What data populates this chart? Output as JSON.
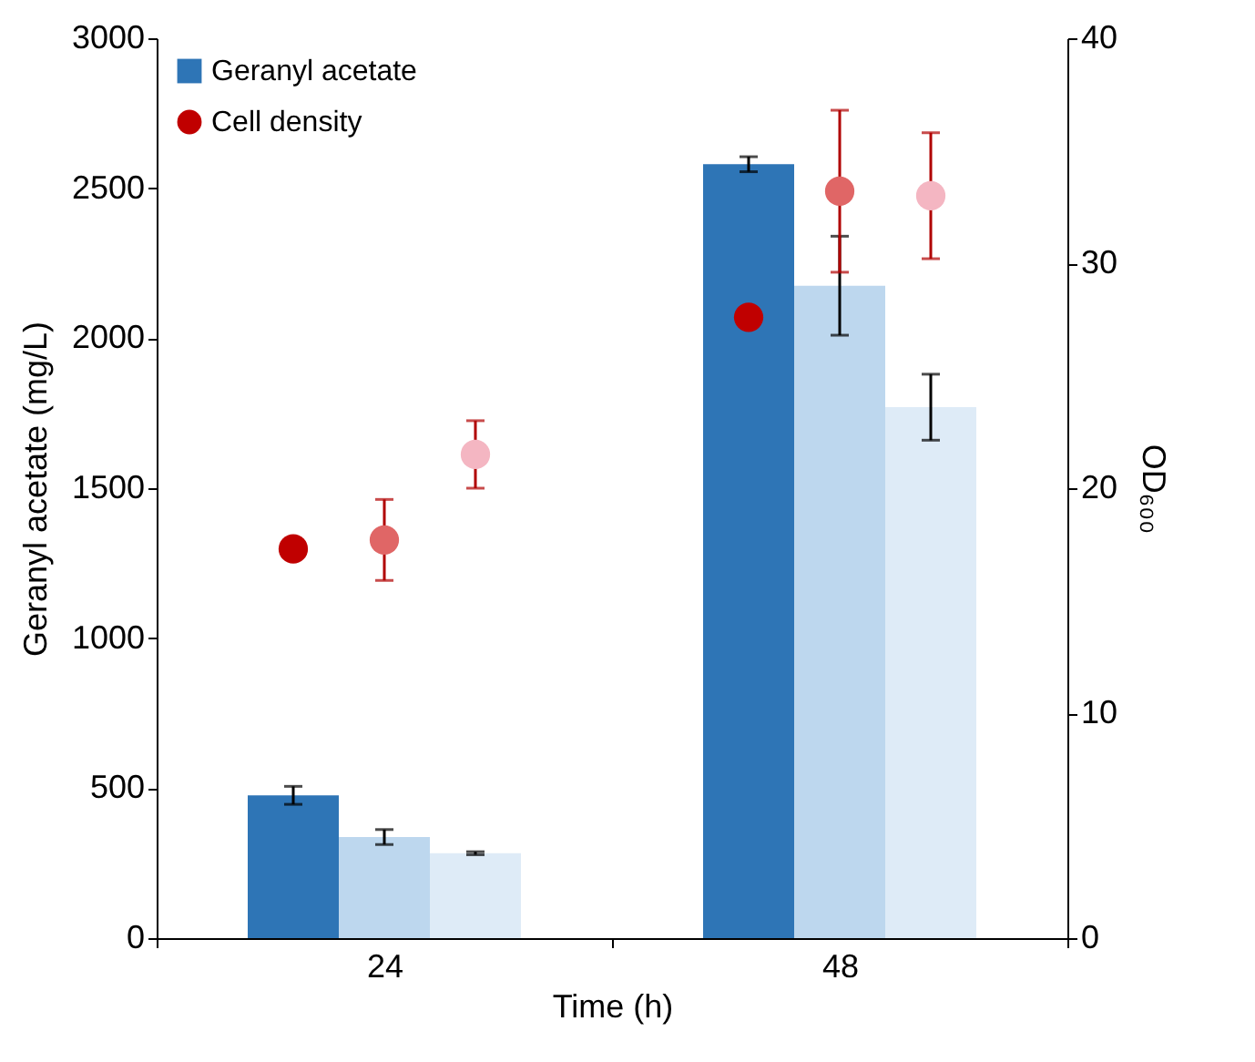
{
  "chart_data": {
    "type": "bar",
    "xlabel": "Time (h)",
    "ylabel": "Geranyl acetate (mg/L)",
    "y2label": "OD₆₀₀",
    "categories": [
      "24",
      "48"
    ],
    "ylim": [
      0,
      3000
    ],
    "yticks": [
      0,
      500,
      1000,
      1500,
      2000,
      2500,
      3000
    ],
    "y2lim": [
      0,
      40
    ],
    "y2ticks": [
      0,
      10,
      20,
      30,
      40
    ],
    "legend": "top left",
    "marker": "circle",
    "series": [
      {
        "name": "Geranyl acetate",
        "color": "#2e75b6",
        "values": [
          476,
          2580
        ],
        "errors": [
          30,
          25
        ]
      },
      {
        "color": "#bdd7ee",
        "values": [
          337,
          2175
        ],
        "errors": [
          25,
          165
        ]
      },
      {
        "color": "#deebf7",
        "values": [
          283,
          1770
        ],
        "errors": [
          5,
          110
        ]
      },
      {
        "name": "Cell density",
        "type": "scatter",
        "axis": "y2",
        "color": "#c00000",
        "values": [
          17.3,
          27.6
        ],
        "errors": [
          0.4,
          null
        ]
      },
      {
        "type": "scatter",
        "axis": "y2",
        "color": "#e06666",
        "values": [
          17.7,
          33.2
        ],
        "errors": [
          1.8,
          3.6
        ]
      },
      {
        "type": "scatter",
        "axis": "y2",
        "color": "#f4b6c2",
        "values": [
          21.5,
          33.0
        ],
        "errors": [
          1.5,
          2.8
        ]
      }
    ]
  }
}
